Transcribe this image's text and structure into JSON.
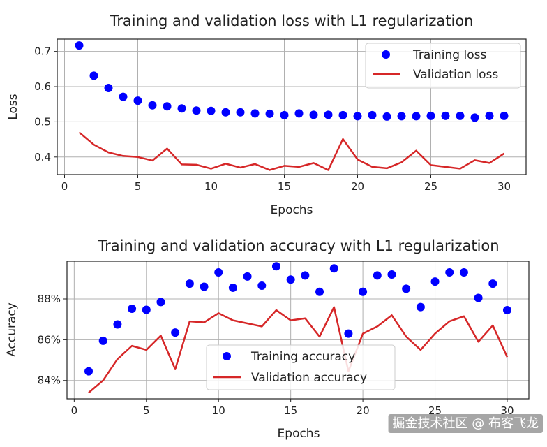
{
  "chart_data": [
    {
      "type": "line",
      "title": "Training and validation loss with L1 regularization",
      "xlabel": "Epochs",
      "ylabel": "Loss",
      "xlim": [
        -0.5,
        31.5
      ],
      "ylim": [
        0.35,
        0.735
      ],
      "xticks": [
        0,
        5,
        10,
        15,
        20,
        25,
        30
      ],
      "xtick_labels": [
        "0",
        "5",
        "10",
        "15",
        "20",
        "25",
        "30"
      ],
      "yticks": [
        0.4,
        0.5,
        0.6,
        0.7
      ],
      "ytick_labels": [
        "0.4",
        "0.5",
        "0.6",
        "0.7"
      ],
      "grid": true,
      "legend_position": "top-right",
      "x": [
        1,
        2,
        3,
        4,
        5,
        6,
        7,
        8,
        9,
        10,
        11,
        12,
        13,
        14,
        15,
        16,
        17,
        18,
        19,
        20,
        21,
        22,
        23,
        24,
        25,
        26,
        27,
        28,
        29,
        30
      ],
      "series": [
        {
          "name": "Training loss",
          "style": "points",
          "color": "#0000ff",
          "values": [
            0.717,
            0.631,
            0.596,
            0.571,
            0.56,
            0.547,
            0.544,
            0.538,
            0.532,
            0.531,
            0.527,
            0.527,
            0.524,
            0.523,
            0.519,
            0.524,
            0.52,
            0.52,
            0.519,
            0.516,
            0.519,
            0.515,
            0.516,
            0.516,
            0.517,
            0.517,
            0.517,
            0.512,
            0.517,
            0.517
          ]
        },
        {
          "name": "Validation loss",
          "style": "line",
          "color": "#d62728",
          "values": [
            0.47,
            0.435,
            0.413,
            0.403,
            0.4,
            0.39,
            0.424,
            0.379,
            0.378,
            0.367,
            0.381,
            0.37,
            0.38,
            0.363,
            0.375,
            0.372,
            0.383,
            0.363,
            0.451,
            0.393,
            0.372,
            0.368,
            0.385,
            0.418,
            0.377,
            0.372,
            0.367,
            0.391,
            0.383,
            0.41
          ]
        }
      ]
    },
    {
      "type": "line",
      "title": "Training and validation accuracy with L1 regularization",
      "xlabel": "Epochs",
      "ylabel": "Accuracy",
      "xlim": [
        -0.5,
        31.5
      ],
      "ylim": [
        83.1,
        89.85
      ],
      "xticks": [
        0,
        5,
        10,
        15,
        20,
        25,
        30
      ],
      "xtick_labels": [
        "0",
        "5",
        "10",
        "15",
        "20",
        "25",
        "30"
      ],
      "yticks": [
        84,
        86,
        88
      ],
      "ytick_labels": [
        "84%",
        "86%",
        "88%"
      ],
      "grid": true,
      "legend_position": "bottom-center",
      "x": [
        1,
        2,
        3,
        4,
        5,
        6,
        7,
        8,
        9,
        10,
        11,
        12,
        13,
        14,
        15,
        16,
        17,
        18,
        19,
        20,
        21,
        22,
        23,
        24,
        25,
        26,
        27,
        28,
        29,
        30
      ],
      "series": [
        {
          "name": "Training accuracy",
          "style": "points",
          "color": "#0000ff",
          "values": [
            84.45,
            85.95,
            86.75,
            87.52,
            87.47,
            87.85,
            86.35,
            88.75,
            88.6,
            89.3,
            88.55,
            89.1,
            88.65,
            89.6,
            88.95,
            89.15,
            88.35,
            89.5,
            86.3,
            88.35,
            89.15,
            89.2,
            88.5,
            87.6,
            88.85,
            89.3,
            89.3,
            88.05,
            88.75,
            87.45
          ]
        },
        {
          "name": "Validation accuracy",
          "style": "line",
          "color": "#d62728",
          "values": [
            83.4,
            84.0,
            85.05,
            85.7,
            85.5,
            86.2,
            84.55,
            86.9,
            86.85,
            87.3,
            86.95,
            86.8,
            86.65,
            87.45,
            86.95,
            87.05,
            86.15,
            87.6,
            84.45,
            86.3,
            86.65,
            87.2,
            86.15,
            85.5,
            86.3,
            86.9,
            87.15,
            85.9,
            86.7,
            85.15
          ]
        }
      ]
    }
  ],
  "watermark": "掘金技术社区 @ 布客飞龙"
}
